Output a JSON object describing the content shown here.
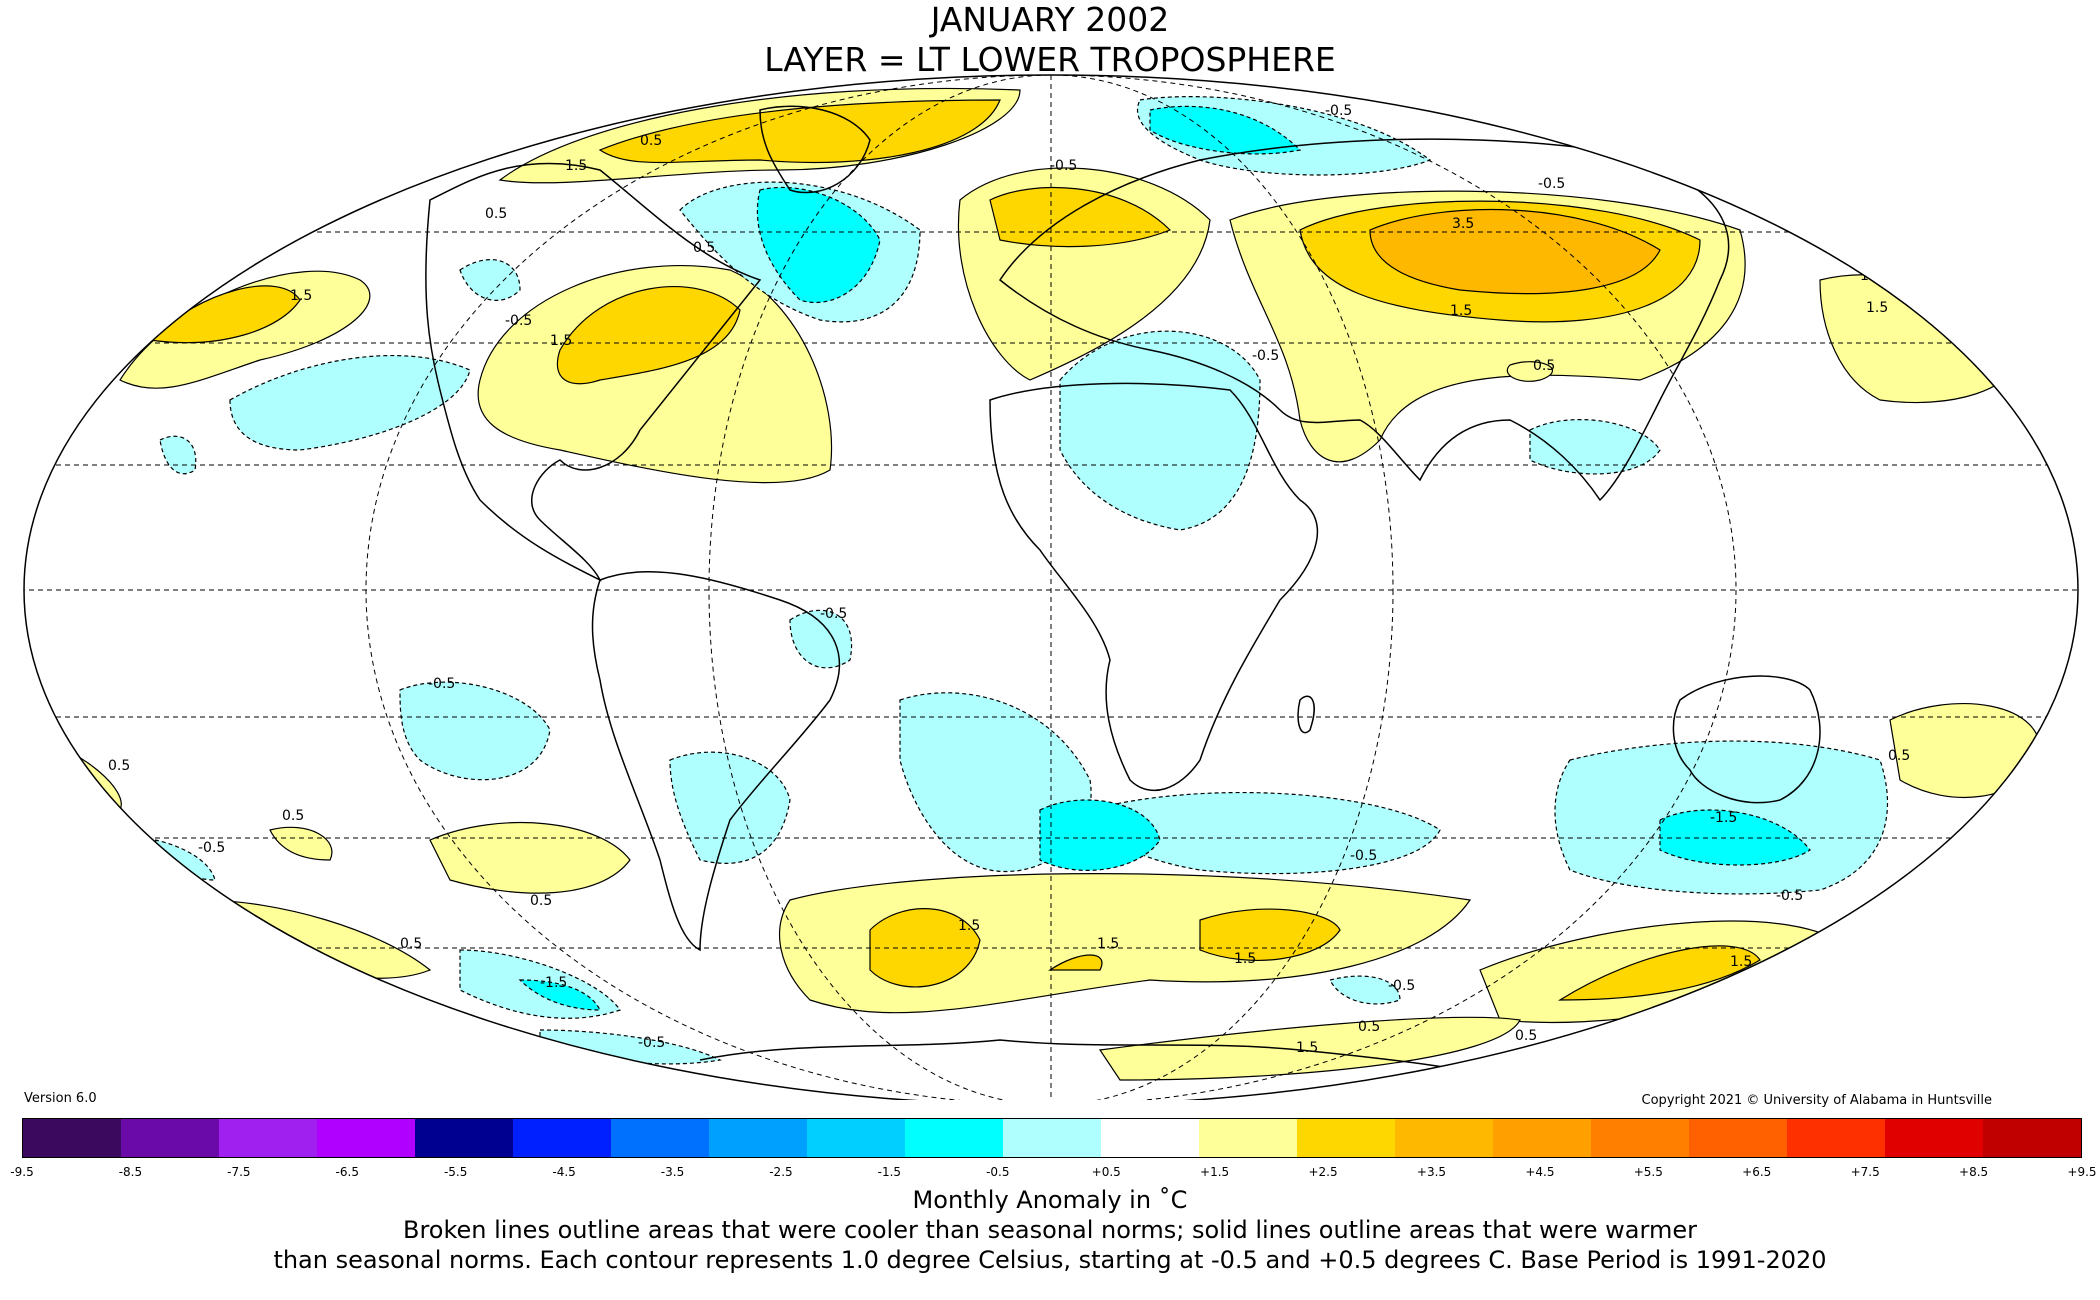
{
  "title": "JANUARY 2002",
  "subtitle": "LAYER = LT LOWER TROPOSPHERE",
  "version": "Version 6.0",
  "copyright": "Copyright 2021 © University of Alabama in Huntsville",
  "colorbar": {
    "ticks": [
      "-9.5",
      "-8.5",
      "-7.5",
      "-6.5",
      "-5.5",
      "-4.5",
      "-3.5",
      "-2.5",
      "-1.5",
      "-0.5",
      "+0.5",
      "+1.5",
      "+2.5",
      "+3.5",
      "+4.5",
      "+5.5",
      "+6.5",
      "+7.5",
      "+8.5",
      "+9.5"
    ],
    "colors": [
      "#3b0a5e",
      "#6a0aa8",
      "#a020f0",
      "#b000ff",
      "#000090",
      "#0020ff",
      "#0070ff",
      "#00a0ff",
      "#00cfff",
      "#00ffff",
      "#b0ffff",
      "#ffffff",
      "#ffff99",
      "#ffd700",
      "#ffb800",
      "#ffa000",
      "#ff8000",
      "#ff6000",
      "#ff3000",
      "#e00000",
      "#c00000"
    ]
  },
  "units_label": "Monthly Anomaly in ˚C",
  "note_line1": "Broken lines outline areas that were cooler than seasonal norms; solid lines outline areas that were warmer",
  "note_line2": "than seasonal norms. Each contour represents 1.0 degree Celsius, starting at -0.5 and +0.5 degrees C. Base Period is 1991-2020",
  "contour_labels": [
    {
      "text": "-0.5"
    },
    {
      "text": "0.5"
    },
    {
      "text": "1.5"
    },
    {
      "text": "-0.5"
    },
    {
      "text": "0.5"
    },
    {
      "text": "1.5"
    },
    {
      "text": "-0.5"
    },
    {
      "text": "0.5"
    },
    {
      "text": "-0.5"
    },
    {
      "text": "3.5"
    },
    {
      "text": "1.5"
    },
    {
      "text": "1.5"
    },
    {
      "text": "0.5"
    },
    {
      "text": "-0.5"
    },
    {
      "text": "-0.5"
    },
    {
      "text": "0.5"
    },
    {
      "text": "-0.5"
    },
    {
      "text": "0.5"
    },
    {
      "text": "0.5"
    },
    {
      "text": "-0.5"
    },
    {
      "text": "1.5"
    },
    {
      "text": "1.5"
    },
    {
      "text": "1.5"
    },
    {
      "text": "-0.5"
    },
    {
      "text": "-1.5"
    },
    {
      "text": "-0.5"
    },
    {
      "text": "0.5"
    },
    {
      "text": "1.5"
    },
    {
      "text": "-1.5"
    },
    {
      "text": "-0.5"
    },
    {
      "text": "1.5"
    },
    {
      "text": "0.5"
    },
    {
      "text": "0.5"
    },
    {
      "text": "0.5"
    },
    {
      "text": "-0.5"
    },
    {
      "text": "1.5"
    },
    {
      "text": "1.5"
    }
  ]
}
